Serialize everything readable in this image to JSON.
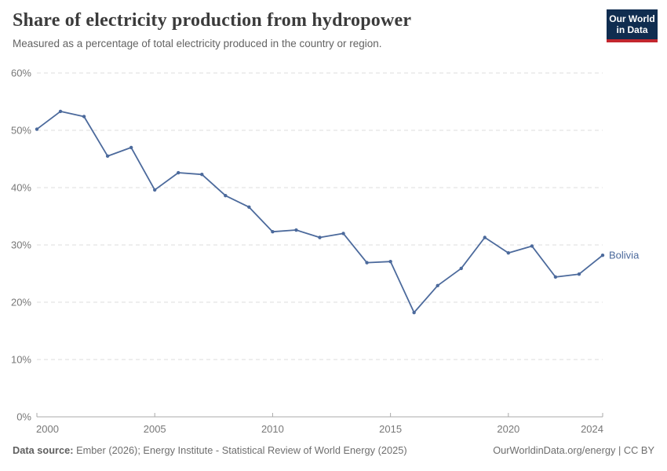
{
  "header": {
    "title": "Share of electricity production from hydropower",
    "subtitle": "Measured as a percentage of total electricity produced in the country or region.",
    "logo": {
      "line1": "Our World",
      "line2": "in Data",
      "bg_color": "#102d50",
      "accent_color": "#c2262e"
    }
  },
  "chart_data": {
    "type": "line",
    "title": "Share of electricity production from hydropower",
    "subtitle": "Measured as a percentage of total electricity produced in the country or region.",
    "x": [
      2000,
      2001,
      2002,
      2003,
      2004,
      2005,
      2006,
      2007,
      2008,
      2009,
      2010,
      2011,
      2012,
      2013,
      2014,
      2015,
      2016,
      2017,
      2018,
      2019,
      2020,
      2021,
      2022,
      2023,
      2024
    ],
    "series": [
      {
        "name": "Bolivia",
        "color": "#4C6A9C",
        "values": [
          50.2,
          53.3,
          52.4,
          45.5,
          47.0,
          39.6,
          42.6,
          42.3,
          38.6,
          36.6,
          32.3,
          32.6,
          31.3,
          32.0,
          26.9,
          27.1,
          18.2,
          22.9,
          25.9,
          31.3,
          28.6,
          29.8,
          24.4,
          24.9,
          28.2
        ]
      }
    ],
    "xlabel": "",
    "ylabel": "",
    "xlim": [
      2000,
      2024
    ],
    "ylim": [
      0,
      60
    ],
    "yticks": [
      0,
      10,
      20,
      30,
      40,
      50,
      60
    ],
    "ytick_suffix": "%",
    "xticks": [
      2000,
      2005,
      2010,
      2015,
      2020,
      2024
    ],
    "grid": "horizontal dashed",
    "legend": "line-end label",
    "colors": {
      "grid": "#dcdcdc",
      "axis": "#a9a9a9",
      "tick_label": "#787878"
    }
  },
  "footer": {
    "source_label": "Data source:",
    "source_text": " Ember (2026); Energy Institute - Statistical Review of World Energy (2025)",
    "link_text": "OurWorldinData.org/energy | CC BY"
  }
}
